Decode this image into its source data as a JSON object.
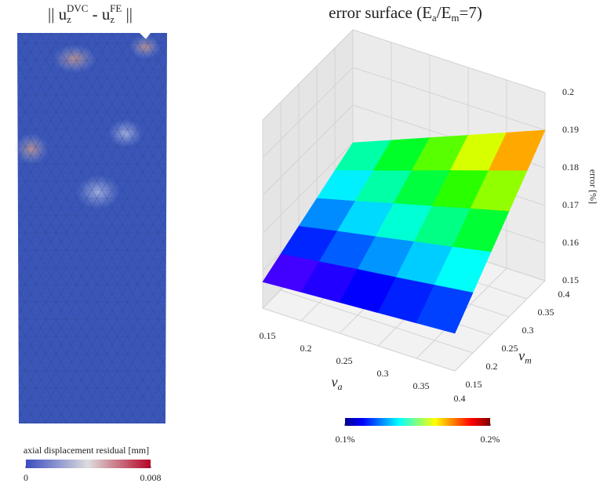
{
  "chart_data": [
    {
      "type": "colormap-image",
      "title_parts": [
        "|| u",
        "z",
        "DVC",
        " - u",
        "z",
        "FE",
        " ||"
      ],
      "colorbar": {
        "label": "axial displacement residual [mm]",
        "clim": [
          0,
          0.008
        ],
        "ticks": [
          0,
          0.008
        ],
        "colors": [
          "#3b4cc0",
          "#dddddd",
          "#b40426"
        ]
      }
    },
    {
      "type": "surface",
      "title_parts": [
        "error surface (E",
        "a",
        "/E",
        "m",
        "=7)"
      ],
      "x_label": {
        "symbol": "ν",
        "sub": "a"
      },
      "y_label": {
        "symbol": "ν",
        "sub": "m"
      },
      "z_label": "error [%]",
      "x": [
        0.15,
        0.2,
        0.25,
        0.3,
        0.35,
        0.4
      ],
      "y": [
        0.15,
        0.2,
        0.25,
        0.3,
        0.35,
        0.4
      ],
      "z": [
        [
          0.157,
          0.1576,
          0.1582,
          0.1588,
          0.1594,
          0.16
        ],
        [
          0.1596,
          0.1609,
          0.1622,
          0.1634,
          0.1647,
          0.166
        ],
        [
          0.1622,
          0.1642,
          0.1661,
          0.1681,
          0.17,
          0.172
        ],
        [
          0.1648,
          0.1674,
          0.1701,
          0.1727,
          0.1754,
          0.178
        ],
        [
          0.1674,
          0.1707,
          0.174,
          0.1774,
          0.1807,
          0.184
        ],
        [
          0.17,
          0.174,
          0.178,
          0.182,
          0.186,
          0.19
        ]
      ],
      "xlim": [
        0.15,
        0.4
      ],
      "ylim": [
        0.15,
        0.4
      ],
      "zlim": [
        0.15,
        0.2
      ],
      "xticks": [
        0.15,
        0.2,
        0.25,
        0.3,
        0.35,
        0.4
      ],
      "yticks": [
        0.15,
        0.2,
        0.25,
        0.3,
        0.35,
        0.4
      ],
      "zticks": [
        0.15,
        0.16,
        0.17,
        0.18,
        0.19,
        0.2
      ],
      "colorbar": {
        "clim": [
          0.1,
          0.2
        ],
        "ticks": [
          {
            "value": 0.1,
            "label": "0.1%"
          },
          {
            "value": 0.2,
            "label": "0.2%"
          }
        ]
      }
    }
  ]
}
